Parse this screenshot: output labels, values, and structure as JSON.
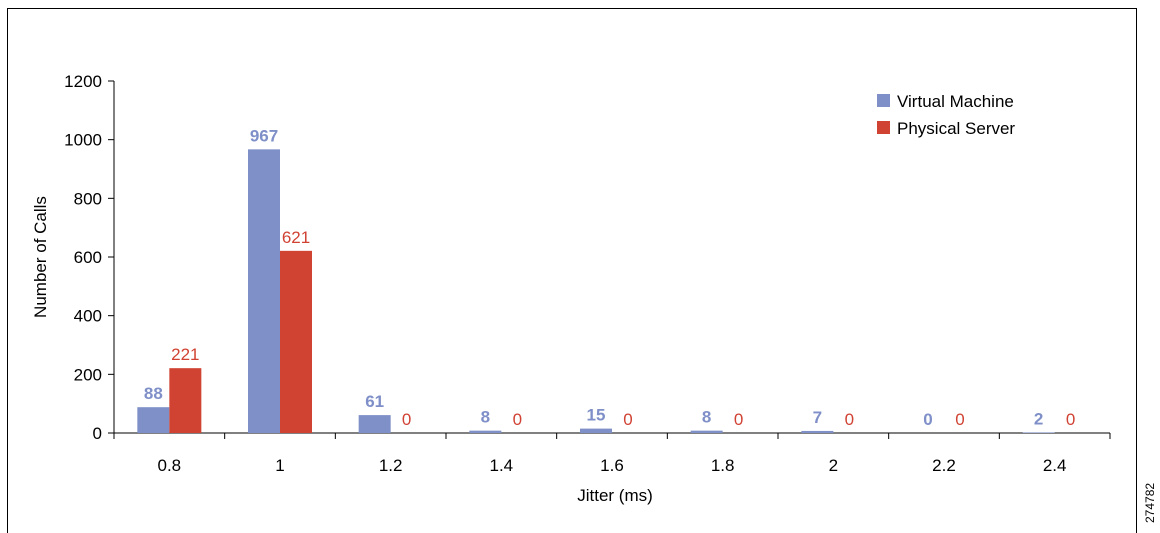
{
  "figure_id": "274782",
  "chart_data": {
    "type": "bar",
    "title": "",
    "xlabel": "Jitter (ms)",
    "ylabel": "Number of Calls",
    "categories": [
      "0.8",
      "1",
      "1.2",
      "1.4",
      "1.6",
      "1.8",
      "2",
      "2.2",
      "2.4"
    ],
    "ylim": [
      0,
      1200
    ],
    "yticks": [
      "0",
      "200",
      "400",
      "600",
      "800",
      "1000",
      "1200"
    ],
    "grid": false,
    "legend_position": "top-right",
    "series": [
      {
        "name": "Virtual Machine",
        "color": "#7f8fc8",
        "label_color": "#7f8fc8",
        "label_bold": true,
        "values": [
          88,
          967,
          61,
          8,
          15,
          8,
          7,
          0,
          2
        ]
      },
      {
        "name": "Physical Server",
        "color": "#d04232",
        "label_color": "#d04232",
        "label_bold": false,
        "values": [
          221,
          621,
          0,
          0,
          0,
          0,
          0,
          0,
          0
        ]
      }
    ]
  }
}
